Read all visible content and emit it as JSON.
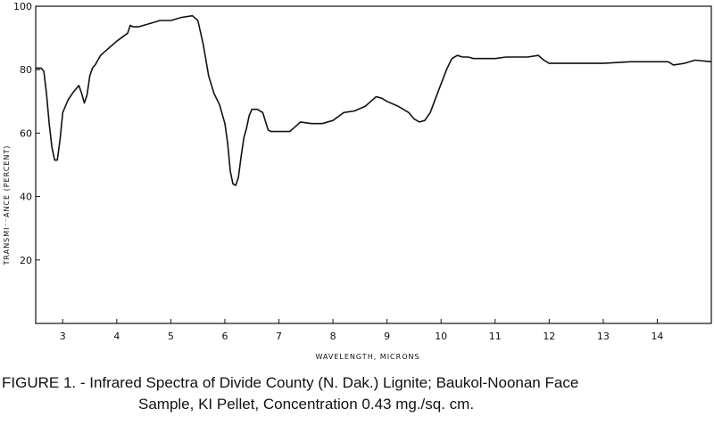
{
  "chart_data": {
    "type": "line",
    "title": "",
    "xlabel": "WAVELENGTH, MICRONS",
    "ylabel": "TRANSMI⁻⁻ANCE (PERCENT)",
    "xlim": [
      2.5,
      15.0
    ],
    "ylim": [
      0,
      100
    ],
    "xticks": [
      "3",
      "4",
      "5",
      "6",
      "7",
      "8",
      "9",
      "10",
      "11",
      "12",
      "13",
      "14"
    ],
    "yticks": [
      "20",
      "40",
      "60",
      "80",
      "100"
    ],
    "grid": false,
    "series": [
      {
        "x": [
          2.5,
          2.6,
          2.65,
          2.7,
          2.75,
          2.8,
          2.85,
          2.9,
          2.95,
          3.0,
          3.1,
          3.2,
          3.3,
          3.35,
          3.4,
          3.45,
          3.5,
          3.55,
          3.6,
          3.7,
          3.8,
          4.0,
          4.2,
          4.25,
          4.3,
          4.4,
          4.6,
          4.8,
          5.0,
          5.2,
          5.4,
          5.5,
          5.6,
          5.7,
          5.8,
          5.9,
          6.0,
          6.05,
          6.1,
          6.15,
          6.2,
          6.25,
          6.3,
          6.35,
          6.4,
          6.45,
          6.5,
          6.6,
          6.7,
          6.8,
          6.85,
          6.9,
          7.0,
          7.2,
          7.3,
          7.4,
          7.6,
          7.8,
          8.0,
          8.2,
          8.4,
          8.6,
          8.7,
          8.8,
          8.9,
          9.0,
          9.2,
          9.4,
          9.5,
          9.6,
          9.7,
          9.8,
          9.9,
          10.0,
          10.1,
          10.2,
          10.3,
          10.4,
          10.5,
          10.6,
          11.0,
          11.2,
          11.4,
          11.6,
          11.8,
          11.9,
          12.0,
          12.5,
          13.0,
          13.5,
          14.0,
          14.2,
          14.3,
          14.5,
          14.7,
          15.0
        ],
        "y": [
          80.5,
          80.5,
          79.5,
          72.5,
          63.0,
          55.5,
          51.5,
          51.5,
          58.0,
          66.5,
          70.5,
          73.0,
          75.0,
          72.5,
          69.5,
          72.0,
          78.0,
          80.5,
          81.5,
          84.5,
          86.0,
          89.0,
          91.5,
          94.0,
          93.5,
          93.5,
          94.5,
          95.5,
          95.5,
          96.5,
          97.0,
          95.5,
          88.0,
          78.0,
          72.5,
          69.0,
          63.0,
          57.0,
          48.0,
          44.0,
          43.5,
          46.0,
          52.5,
          58.5,
          61.5,
          65.5,
          67.5,
          67.5,
          66.5,
          61.0,
          60.5,
          60.5,
          60.5,
          60.5,
          62.0,
          63.5,
          63.0,
          63.0,
          64.0,
          66.5,
          67.0,
          68.5,
          70.0,
          71.5,
          71.0,
          70.0,
          68.5,
          66.5,
          64.5,
          63.5,
          64.0,
          66.5,
          71.0,
          75.5,
          80.0,
          83.5,
          84.5,
          84.0,
          84.0,
          83.5,
          83.5,
          84.0,
          84.0,
          84.0,
          84.5,
          83.0,
          82.0,
          82.0,
          82.0,
          82.5,
          82.5,
          82.5,
          81.5,
          82.0,
          83.0,
          82.5
        ]
      }
    ]
  },
  "caption": {
    "line1": "FIGURE 1. - Infrared Spectra of Divide County (N. Dak.) Lignite; Baukol-Noonan Face",
    "line2": "Sample, KI Pellet, Concentration 0.43 mg./sq. cm."
  }
}
